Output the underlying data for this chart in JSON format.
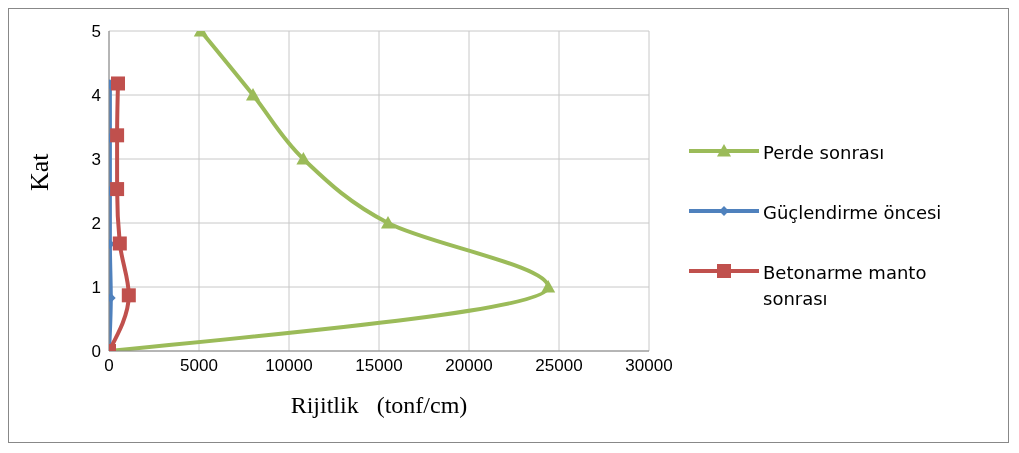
{
  "chart_data": {
    "type": "line",
    "xlabel": "Rijitlik   (tonf/cm)",
    "ylabel": "Kat",
    "xlim": [
      0,
      30000
    ],
    "xticks": [
      0,
      5000,
      10000,
      15000,
      20000,
      25000,
      30000
    ],
    "ylim": [
      0,
      5
    ],
    "yticks": [
      0,
      1,
      2,
      3,
      4,
      5
    ],
    "grid": true,
    "legend": "right",
    "line_style": "solid",
    "series": [
      {
        "name": "Perde sonrası",
        "color": "#9bbb59",
        "marker": "triangle",
        "x": [
          0,
          24400,
          15500,
          10800,
          8000,
          5100
        ],
        "values": [
          0,
          1,
          2,
          3,
          4,
          5
        ]
      },
      {
        "name": "Güçlendirme öncesi",
        "color": "#4f81bd",
        "marker": "diamond",
        "x": [
          0,
          100,
          50,
          50,
          50,
          50
        ],
        "values": [
          0,
          0.83,
          1.67,
          2.5,
          3.33,
          4.17
        ]
      },
      {
        "name": "Betonarme manto sonrası",
        "color": "#c0504d",
        "marker": "square",
        "x": [
          0,
          1100,
          600,
          450,
          450,
          500
        ],
        "values": [
          0,
          0.87,
          1.68,
          2.53,
          3.37,
          4.18
        ]
      }
    ]
  }
}
